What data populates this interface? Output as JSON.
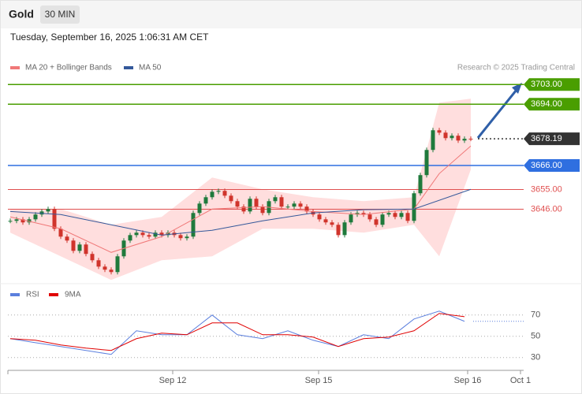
{
  "header": {
    "symbol": "Gold",
    "interval": "30 MIN"
  },
  "chart_data": [
    {
      "type": "candlestick",
      "subtitle": "Tuesday, September 16, 2025 1:06:31 AM CET",
      "attribution": "Research © 2025 Trading Central",
      "up_color": "#1f7a3c",
      "down_color": "#d0342c",
      "values": [
        3640.7,
        3641.4,
        3640.0,
        3641.4,
        3643.6,
        3645.0,
        3646.1,
        3637.1,
        3633.5,
        3631.7,
        3627.0,
        3629.9,
        3625.6,
        3622.7,
        3619.8,
        3618.4,
        3617.3,
        3624.5,
        3631.7,
        3634.2,
        3635.3,
        3634.2,
        3633.5,
        3635.3,
        3634.2,
        3635.3,
        3634.2,
        3632.8,
        3633.5,
        3644.3,
        3648.6,
        3651.5,
        3654.0,
        3654.4,
        3652.2,
        3649.7,
        3647.2,
        3645.0,
        3650.8,
        3647.2,
        3644.3,
        3649.7,
        3651.5,
        3647.2,
        3647.2,
        3648.6,
        3647.2,
        3645.0,
        3643.6,
        3641.4,
        3640.0,
        3638.9,
        3634.2,
        3640.0,
        3643.6,
        3644.3,
        3643.6,
        3641.4,
        3638.9,
        3643.6,
        3644.3,
        3642.5,
        3644.3,
        3640.7,
        3653.3,
        3661.6,
        3673.1,
        3682.1,
        3681.0,
        3678.5,
        3679.6,
        3677.4,
        3678.2,
        3678.19
      ],
      "indicators": [
        {
          "name": "MA 20 + Bollinger Bands",
          "color": "#f07878",
          "band_color": "#ffdede",
          "x": [
            0,
            8,
            16,
            24,
            32,
            40,
            48,
            56,
            64,
            68,
            73
          ],
          "values": [
            3642.5,
            3637.1,
            3626.3,
            3633.5,
            3646.1,
            3647.2,
            3645.0,
            3643.6,
            3646.1,
            3662.3,
            3674.9
          ],
          "upper": [
            3646.1,
            3646.1,
            3638.9,
            3642.5,
            3660.5,
            3655.1,
            3651.5,
            3649.7,
            3651.5,
            3694.7,
            3696.5
          ],
          "lower": [
            3635.3,
            3624.5,
            3613.7,
            3622.7,
            3624.5,
            3637.1,
            3637.1,
            3635.3,
            3638.9,
            3624.5,
            3664.1
          ]
        },
        {
          "name": "MA 50",
          "color": "#34589a",
          "x": [
            0,
            8,
            16,
            24,
            32,
            40,
            48,
            56,
            64,
            73
          ],
          "values": [
            3645.0,
            3643.6,
            3638.9,
            3634.2,
            3636.4,
            3640.7,
            3644.3,
            3645.8,
            3646.1,
            3655.1
          ]
        }
      ],
      "levels": [
        {
          "value": 3703,
          "label": "3703.00",
          "color": "#4a9e00",
          "style": "box"
        },
        {
          "value": 3694,
          "label": "3694.00",
          "color": "#4a9e00",
          "style": "box"
        },
        {
          "value": 3678.19,
          "color": "#333333",
          "style": "dotted-box"
        },
        {
          "value": 3666,
          "label": "3666.00",
          "color": "#2f6fe0",
          "style": "box"
        },
        {
          "value": 3655,
          "label": "3655.00",
          "color": "#e05050",
          "style": "text"
        },
        {
          "value": 3646,
          "label": "3646.00",
          "color": "#e05050",
          "style": "text"
        }
      ],
      "ylim": [
        3612,
        3720
      ]
    },
    {
      "type": "line",
      "series": [
        {
          "name": "RSI",
          "color": "#5b7fde",
          "x": [
            0,
            4,
            8,
            12,
            16,
            20,
            24,
            28,
            32,
            36,
            40,
            44,
            48,
            52,
            56,
            60,
            64,
            68,
            72
          ],
          "values": [
            47.8,
            44,
            40.4,
            36.7,
            33,
            55.2,
            51.5,
            51.5,
            70,
            51.5,
            47.8,
            55.2,
            46.3,
            40.4,
            51.5,
            47.8,
            66.3,
            73.7,
            64.1
          ]
        },
        {
          "name": "9MA",
          "color": "#e00000",
          "x": [
            0,
            4,
            8,
            12,
            16,
            20,
            24,
            28,
            32,
            36,
            40,
            44,
            48,
            52,
            56,
            60,
            64,
            68,
            72
          ],
          "values": [
            47.8,
            46.3,
            41.9,
            38.9,
            36.7,
            47.8,
            53,
            51.5,
            62.6,
            62.6,
            51.5,
            51.5,
            49.3,
            40.4,
            47.8,
            49.3,
            55.2,
            71.5,
            68.5
          ]
        }
      ],
      "ylim": [
        18,
        98
      ],
      "yticks": [
        70,
        50,
        30
      ],
      "grid": true,
      "xlim": [
        0,
        80.875
      ],
      "xticks": [
        {
          "value": 25.75,
          "label": "Sep 12"
        },
        {
          "value": 48.875,
          "label": "Sep 15"
        },
        {
          "value": 72.5,
          "label": "Sep 16"
        },
        {
          "value": 80.875,
          "label": "Oct 1"
        }
      ]
    }
  ]
}
